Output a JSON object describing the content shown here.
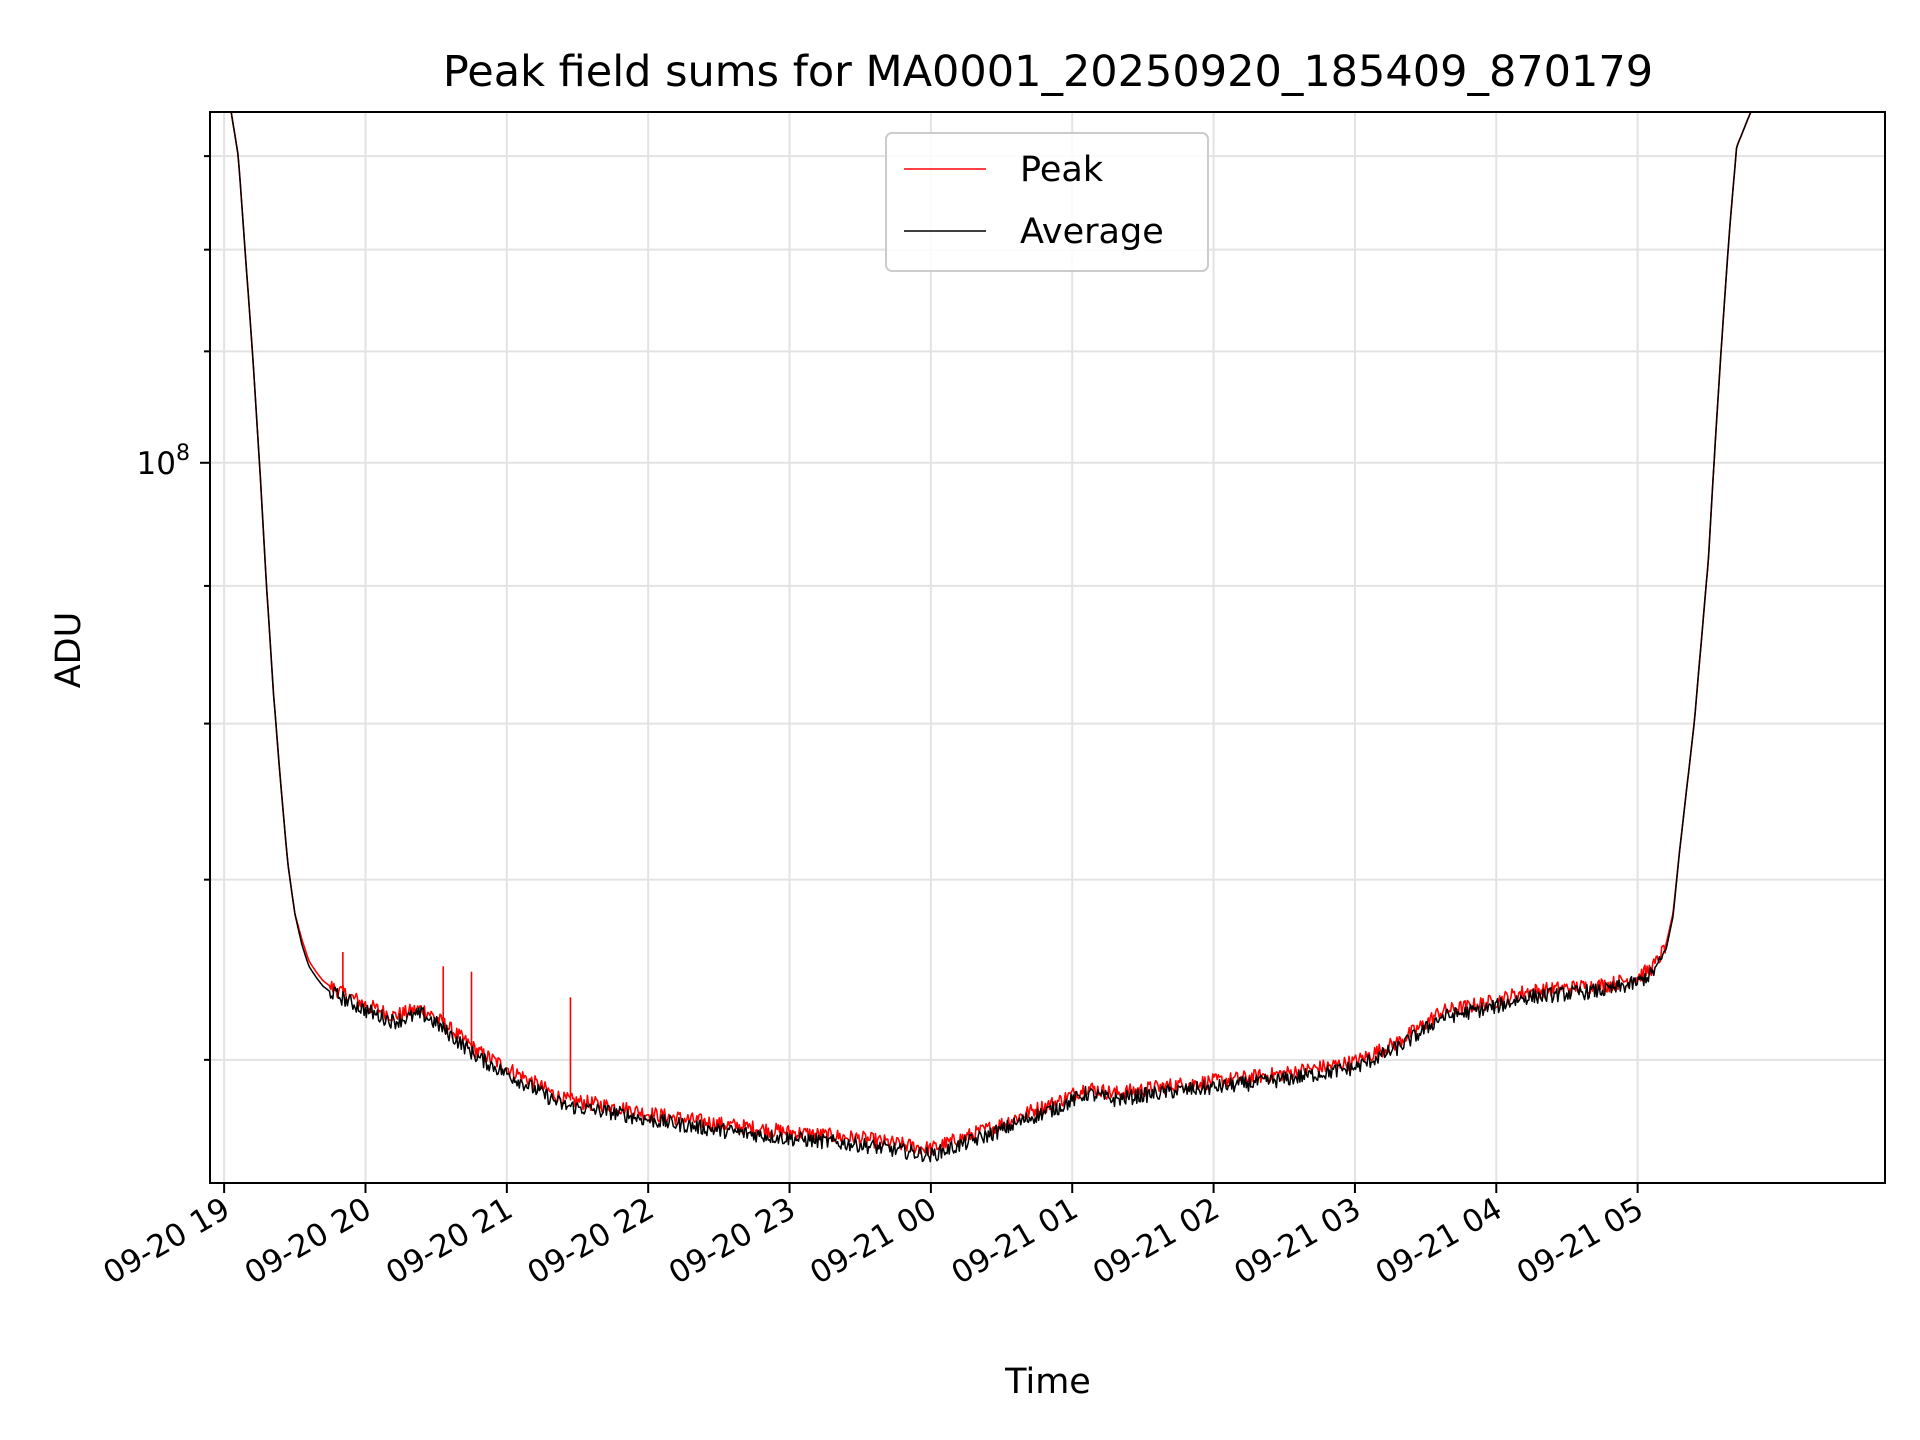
{
  "chart_data": {
    "type": "line",
    "title": "Peak field sums for MA0001_20250920_185409_870179",
    "xlabel": "Time",
    "ylabel": "ADU",
    "y_scale": "log",
    "ylim": [
      54000000,
      135000000
    ],
    "xlim_hours": [
      -0.1,
      11.75
    ],
    "grid": true,
    "legend_position": "top-center",
    "x_tick_hours": [
      0,
      1,
      2,
      3,
      4,
      5,
      6,
      7,
      8,
      9,
      10
    ],
    "x_tick_labels": [
      "09-20 19",
      "09-20 20",
      "09-20 21",
      "09-20 22",
      "09-20 23",
      "09-21 00",
      "09-21 01",
      "09-21 02",
      "09-21 03",
      "09-21 04",
      "09-21 05"
    ],
    "y_major_ticks": [
      {
        "value": 100000000,
        "base": "10",
        "exponent": "8"
      }
    ],
    "y_minor_ticks": [
      60000000,
      70000000,
      80000000,
      90000000,
      110000000,
      120000000,
      130000000
    ],
    "x_note": "x values are hours after 09-20 19:00",
    "series": [
      {
        "name": "Peak",
        "color": "#ff0000",
        "x": [
          -0.1,
          0.05,
          0.1,
          0.2,
          0.25,
          0.3,
          0.35,
          0.4,
          0.45,
          0.5,
          0.55,
          0.6,
          0.65,
          0.7,
          0.75,
          0.8,
          0.9,
          1.0,
          1.2,
          1.4,
          1.5,
          1.6,
          1.7,
          1.8,
          2.0,
          2.2,
          2.4,
          2.6,
          2.8,
          3.0,
          3.5,
          4.0,
          4.5,
          5.0,
          5.3,
          5.5,
          5.7,
          5.9,
          6.1,
          6.3,
          6.5,
          6.7,
          7.0,
          7.5,
          8.0,
          8.3,
          8.5,
          8.6,
          8.8,
          9.0,
          9.2,
          9.5,
          9.8,
          10.0,
          10.1,
          10.15,
          10.2,
          10.25,
          10.3,
          10.4,
          10.5,
          10.55,
          10.6,
          10.65,
          10.7,
          10.8,
          11.75
        ],
        "y": [
          135000000,
          135000000,
          130000000,
          110000000,
          100000000,
          90000000,
          82000000,
          76000000,
          71000000,
          68000000,
          66500000,
          65300000,
          64700000,
          64200000,
          63900000,
          63700000,
          63300000,
          62900000,
          62300000,
          62700000,
          62200000,
          61600000,
          61000000,
          60400000,
          59600000,
          58800000,
          58000000,
          57800000,
          57600000,
          57300000,
          56800000,
          56400000,
          56100000,
          55600000,
          56300000,
          56800000,
          57400000,
          57900000,
          58600000,
          58300000,
          58500000,
          58700000,
          58900000,
          59300000,
          59900000,
          60900000,
          61900000,
          62500000,
          62800000,
          63100000,
          63600000,
          63800000,
          64000000,
          64400000,
          64900000,
          65400000,
          66200000,
          68000000,
          72000000,
          80000000,
          92000000,
          102000000,
          112000000,
          122000000,
          131000000,
          135000000,
          135000000
        ],
        "spikes": [
          {
            "x": 0.84,
            "y": 65800000
          },
          {
            "x": 1.55,
            "y": 65000000
          },
          {
            "x": 1.75,
            "y": 64700000
          },
          {
            "x": 2.45,
            "y": 63300000
          }
        ]
      },
      {
        "name": "Average",
        "color": "#000000",
        "x": [
          -0.1,
          0.05,
          0.1,
          0.2,
          0.25,
          0.3,
          0.35,
          0.4,
          0.45,
          0.5,
          0.55,
          0.6,
          0.65,
          0.7,
          0.75,
          0.8,
          0.9,
          1.0,
          1.2,
          1.4,
          1.5,
          1.6,
          1.7,
          1.8,
          2.0,
          2.2,
          2.4,
          2.6,
          2.8,
          3.0,
          3.5,
          4.0,
          4.5,
          5.0,
          5.3,
          5.5,
          5.7,
          5.9,
          6.1,
          6.3,
          6.5,
          6.7,
          7.0,
          7.5,
          8.0,
          8.3,
          8.5,
          8.6,
          8.8,
          9.0,
          9.2,
          9.5,
          9.8,
          10.0,
          10.1,
          10.15,
          10.2,
          10.25,
          10.3,
          10.4,
          10.5,
          10.55,
          10.6,
          10.65,
          10.7,
          10.8,
          11.75
        ],
        "y": [
          135000000,
          135000000,
          130000000,
          110000000,
          100000000,
          90000000,
          82000000,
          76000000,
          71000000,
          68000000,
          66200000,
          65000000,
          64400000,
          63900000,
          63600000,
          63400000,
          63000000,
          62600000,
          62000000,
          62400000,
          61900000,
          61300000,
          60700000,
          60100000,
          59300000,
          58500000,
          57700000,
          57500000,
          57300000,
          57000000,
          56500000,
          56100000,
          55800000,
          55300000,
          56000000,
          56500000,
          57100000,
          57600000,
          58300000,
          58000000,
          58200000,
          58400000,
          58600000,
          59000000,
          59600000,
          60600000,
          61600000,
          62200000,
          62500000,
          62800000,
          63300000,
          63500000,
          63700000,
          64100000,
          64600000,
          65100000,
          65900000,
          67800000,
          72000000,
          80000000,
          92000000,
          102000000,
          112000000,
          122000000,
          131000000,
          135000000,
          135000000
        ]
      }
    ]
  }
}
